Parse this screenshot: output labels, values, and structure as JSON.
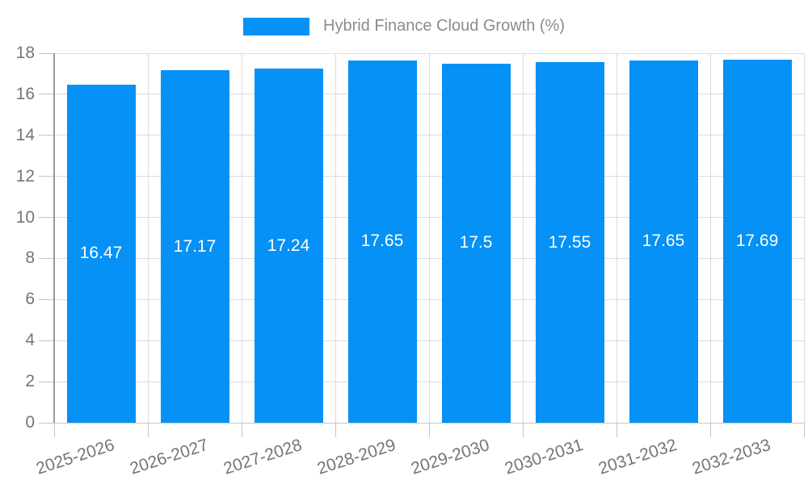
{
  "chart_data": {
    "type": "bar",
    "title": "",
    "legend": {
      "label": "Hybrid Finance Cloud Growth (%)",
      "position": "top"
    },
    "categories": [
      "2025-2026",
      "2026-2027",
      "2027-2028",
      "2028-2029",
      "2029-2030",
      "2030-2031",
      "2031-2032",
      "2032-2033"
    ],
    "values": [
      16.47,
      17.17,
      17.24,
      17.65,
      17.5,
      17.55,
      17.65,
      17.69
    ],
    "value_labels": [
      "16.47",
      "17.17",
      "17.24",
      "17.65",
      "17.5",
      "17.55",
      "17.65",
      "17.69"
    ],
    "xlabel": "",
    "ylabel": "",
    "ylim": [
      0,
      18
    ],
    "ytick_step": 2,
    "yticks": [
      0,
      2,
      4,
      6,
      8,
      10,
      12,
      14,
      16,
      18
    ],
    "grid": true,
    "x_label_rotation_deg": -18,
    "colors": {
      "bar": "#0591f5",
      "grid": "#dcdcdc",
      "axis": "#9a9a9a",
      "axis_bottom": "#c4c4c4",
      "tick": "#c4c4c4",
      "tick_text": "#757575",
      "legend_text": "#8b8b8b",
      "value_text": "#ffffff",
      "background": "#ffffff"
    }
  }
}
